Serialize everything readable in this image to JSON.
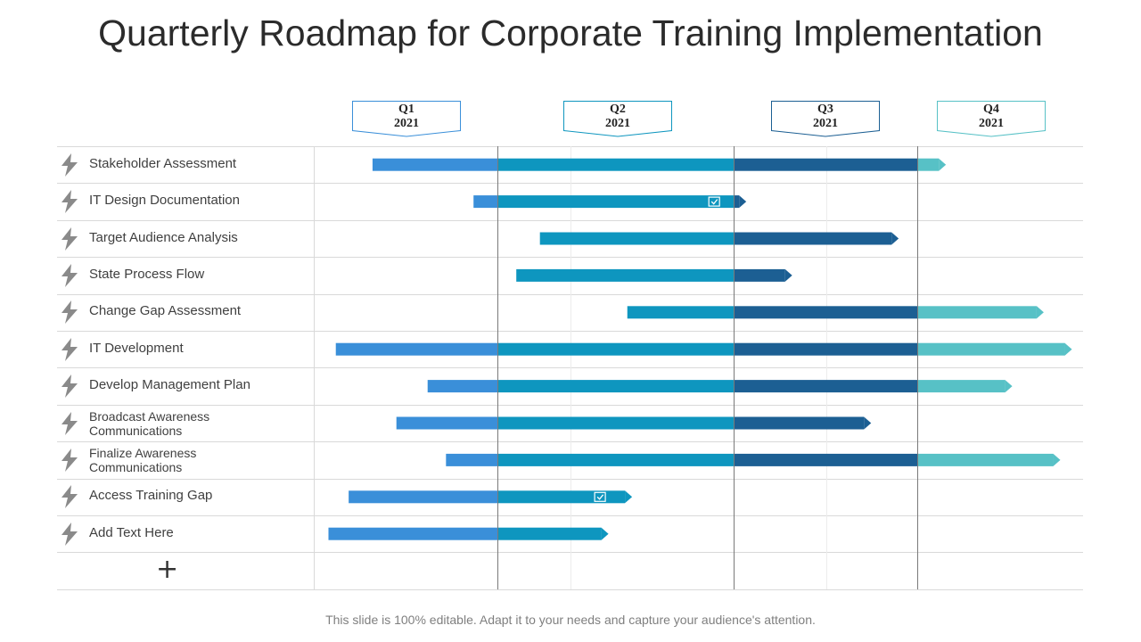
{
  "title": "Quarterly Roadmap for Corporate Training Implementation",
  "footer": "This slide is 100% editable. Adapt it to your needs and capture your audience's attention.",
  "quarters": [
    {
      "q": "Q1",
      "year": "2021"
    },
    {
      "q": "Q2",
      "year": "2021"
    },
    {
      "q": "Q3",
      "year": "2021"
    },
    {
      "q": "Q4",
      "year": "2021"
    }
  ],
  "colors": {
    "q1": "#3a8fd9",
    "q2": "#0e96bf",
    "q3": "#1c5f93",
    "q4": "#57c1c6",
    "grid": "#d9d9d9",
    "divider": "#7a7a7a",
    "bolt": "#8a8a8a"
  },
  "tasks": [
    {
      "line1": "Stakeholder Assessment",
      "line2": "",
      "start": 0.32,
      "end": 3.13,
      "check": false
    },
    {
      "line1": "IT Design Documentation",
      "line2": "",
      "start": 0.87,
      "end": 2.03,
      "check": true
    },
    {
      "line1": "Target Audience Analysis",
      "line2": "",
      "start": 1.18,
      "end": 2.86,
      "check": false
    },
    {
      "line1": "State Process Flow",
      "line2": "",
      "start": 1.08,
      "end": 2.28,
      "check": false
    },
    {
      "line1": "Change Gap Assessment",
      "line2": "",
      "start": 1.55,
      "end": 3.72,
      "check": false
    },
    {
      "line1": "IT Development",
      "line2": "",
      "start": 0.12,
      "end": 3.89,
      "check": false
    },
    {
      "line1": "Develop Management Plan",
      "line2": "",
      "start": 0.62,
      "end": 3.53,
      "check": false
    },
    {
      "line1": "Broadcast Awareness",
      "line2": "Communications",
      "start": 0.45,
      "end": 2.71,
      "check": false
    },
    {
      "line1": "Finalize Awareness",
      "line2": "Communications",
      "start": 0.72,
      "end": 3.82,
      "check": false
    },
    {
      "line1": "Access Training Gap",
      "line2": "",
      "start": 0.19,
      "end": 1.54,
      "check": true
    },
    {
      "line1": "Add Text Here",
      "line2": "",
      "start": 0.08,
      "end": 1.44,
      "check": false
    }
  ],
  "add_row_symbol": "+"
}
